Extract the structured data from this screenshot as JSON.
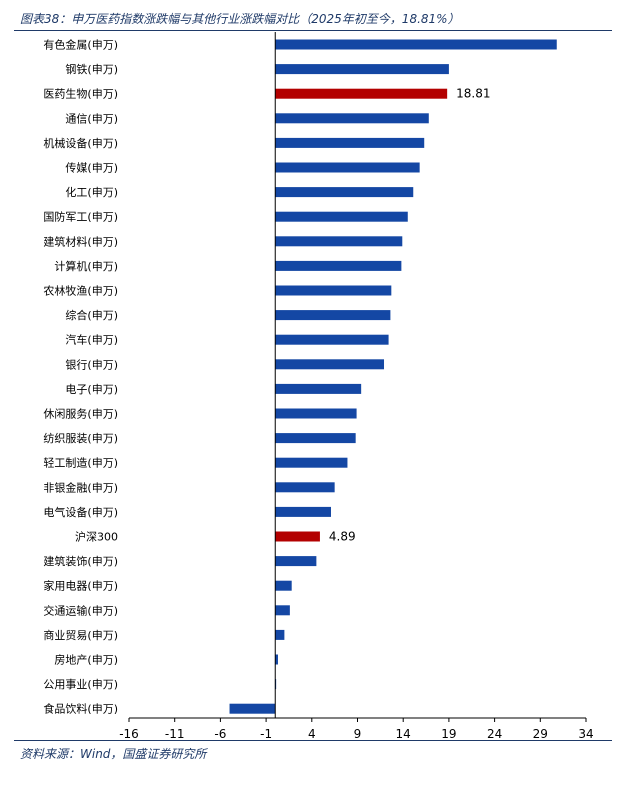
{
  "header": {
    "title": "图表38：申万医药指数涨跌幅与其他行业涨跌幅对比（2025年初至今，18.81%）"
  },
  "footer": {
    "source": "资料来源：Wind，国盛证券研究所"
  },
  "colors": {
    "bar_default": "#1447a4",
    "bar_highlight": "#b30000",
    "title_color": "#1f3a68"
  },
  "chart_data": {
    "type": "bar",
    "orientation": "horizontal",
    "categories": [
      "有色金属(申万)",
      "钢铁(申万)",
      "医药生物(申万)",
      "通信(申万)",
      "机械设备(申万)",
      "传媒(申万)",
      "化工(申万)",
      "国防军工(申万)",
      "建筑材料(申万)",
      "计算机(申万)",
      "农林牧渔(申万)",
      "综合(申万)",
      "汽车(申万)",
      "银行(申万)",
      "电子(申万)",
      "休闲服务(申万)",
      "纺织服装(申万)",
      "轻工制造(申万)",
      "非银金融(申万)",
      "电气设备(申万)",
      "沪深300",
      "建筑装饰(申万)",
      "家用电器(申万)",
      "交通运输(申万)",
      "商业贸易(申万)",
      "房地产(申万)",
      "公用事业(申万)",
      "食品饮料(申万)"
    ],
    "values": [
      30.8,
      19.0,
      18.81,
      16.8,
      16.3,
      15.8,
      15.1,
      14.5,
      13.9,
      13.8,
      12.7,
      12.6,
      12.4,
      11.9,
      9.4,
      8.9,
      8.8,
      7.9,
      6.5,
      6.1,
      4.89,
      4.5,
      1.8,
      1.6,
      1.0,
      0.3,
      0.1,
      -5.0
    ],
    "highlight": [
      "医药生物(申万)",
      "沪深300"
    ],
    "data_labels": [
      {
        "category": "医药生物(申万)",
        "label": "18.81"
      },
      {
        "category": "沪深300",
        "label": "4.89"
      }
    ],
    "xticks": [
      "-16",
      "-11",
      "-6",
      "-1",
      "4",
      "9",
      "14",
      "19",
      "24",
      "29",
      "34"
    ],
    "xlim": [
      -16,
      34
    ],
    "xlabel": "",
    "ylabel": "",
    "grid": false,
    "legend": "none"
  }
}
